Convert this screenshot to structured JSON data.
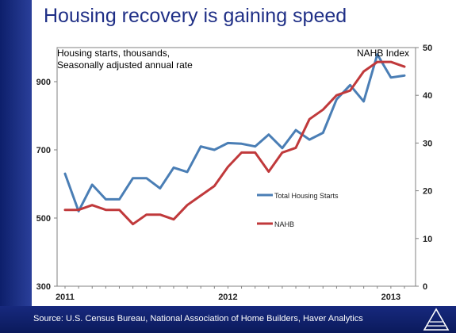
{
  "header": {
    "title": "Housing recovery is gaining speed"
  },
  "footer": {
    "source": "Source: U.S. Census Bureau, National Association of Home Builders, Haver Analytics",
    "logo_icon": "haver-logo-icon"
  },
  "chart_data": {
    "type": "line",
    "annotations": {
      "left_note_line1": "Housing starts, thousands,",
      "left_note_line2": "Seasonally adjusted annual rate",
      "right_note": "NAHB Index"
    },
    "x_tick_labels": [
      "2011",
      "2012",
      "2013"
    ],
    "left_axis": {
      "ylim": [
        300,
        1000
      ],
      "ticks": [
        "300",
        "500",
        "700",
        "900"
      ]
    },
    "right_axis": {
      "ylim": [
        0,
        50
      ],
      "ticks": [
        "0",
        "10",
        "20",
        "30",
        "40",
        "50"
      ]
    },
    "legend": [
      {
        "name": "Total Housing Starts",
        "color": "#4a7eb5"
      },
      {
        "name": "NAHB",
        "color": "#c0393b"
      }
    ],
    "series": [
      {
        "name": "Total Housing Starts",
        "axis": "left",
        "color": "#4a7eb5",
        "values": [
          630,
          520,
          598,
          555,
          555,
          617,
          617,
          587,
          648,
          635,
          710,
          700,
          720,
          718,
          710,
          745,
          705,
          758,
          730,
          750,
          848,
          890,
          842,
          980,
          912,
          918
        ]
      },
      {
        "name": "NAHB",
        "axis": "right",
        "color": "#c0393b",
        "values": [
          16,
          16,
          17,
          16,
          16,
          13,
          15,
          15,
          14,
          17,
          19,
          21,
          25,
          28,
          28,
          24,
          28,
          29,
          35,
          37,
          40,
          41,
          45,
          47,
          47,
          46
        ]
      }
    ],
    "grid": false
  }
}
